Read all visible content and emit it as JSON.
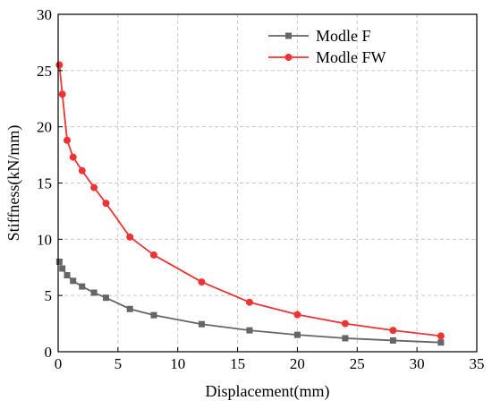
{
  "chart_data": {
    "type": "line",
    "title": "",
    "xlabel": "Displacement(mm)",
    "ylabel": "Stiffness(kN/mm)",
    "xlim": [
      0,
      35
    ],
    "ylim": [
      0,
      30
    ],
    "xticks": [
      0,
      5,
      10,
      15,
      20,
      25,
      30,
      35
    ],
    "yticks": [
      0,
      5,
      10,
      15,
      20,
      25,
      30
    ],
    "grid": true,
    "legend_position": "top-right",
    "series": [
      {
        "name": "Modle F",
        "color": "#666666",
        "marker": "square",
        "points": [
          [
            0.1,
            8.0
          ],
          [
            0.35,
            7.4
          ],
          [
            0.75,
            6.8
          ],
          [
            1.25,
            6.3
          ],
          [
            2.0,
            5.8
          ],
          [
            3.0,
            5.25
          ],
          [
            4.0,
            4.8
          ],
          [
            6.0,
            3.8
          ],
          [
            8.0,
            3.25
          ],
          [
            12.0,
            2.45
          ],
          [
            16.0,
            1.9
          ],
          [
            20.0,
            1.5
          ],
          [
            24.0,
            1.2
          ],
          [
            28.0,
            1.0
          ],
          [
            32.0,
            0.82
          ]
        ]
      },
      {
        "name": "Modle FW",
        "color": "#ee3333",
        "marker": "circle",
        "points": [
          [
            0.1,
            25.5
          ],
          [
            0.35,
            22.9
          ],
          [
            0.75,
            18.8
          ],
          [
            1.25,
            17.3
          ],
          [
            2.0,
            16.1
          ],
          [
            3.0,
            14.6
          ],
          [
            4.0,
            13.2
          ],
          [
            6.0,
            10.2
          ],
          [
            8.0,
            8.6
          ],
          [
            12.0,
            6.2
          ],
          [
            16.0,
            4.4
          ],
          [
            20.0,
            3.3
          ],
          [
            24.0,
            2.5
          ],
          [
            28.0,
            1.9
          ],
          [
            32.0,
            1.4
          ]
        ]
      }
    ]
  }
}
